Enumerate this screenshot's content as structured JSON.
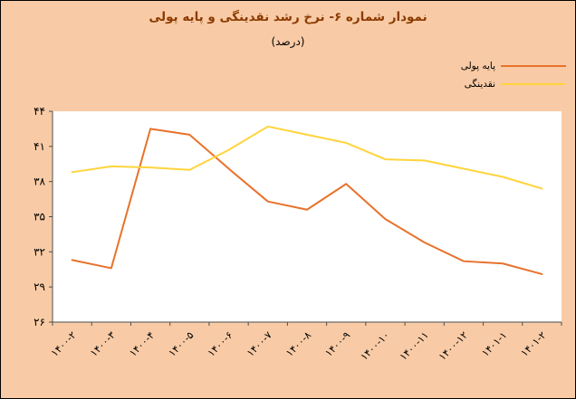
{
  "colors": {
    "background": "#F8CBA6",
    "title": "#8C3B00",
    "axis": "#4D4D4D",
    "plot_background": "#FFFFFF",
    "tick_label": "#000000"
  },
  "chart_data": {
    "type": "line",
    "title": "نمودار شماره ۶- نرخ رشد نقدینگی و پایه پولی",
    "subtitle": "(درصد)",
    "categories": [
      "۱۴۰۰-۲",
      "۱۴۰۰-۳",
      "۱۴۰۰-۴",
      "۱۴۰۰-۵",
      "۱۴۰۰-۶",
      "۱۴۰۰-۷",
      "۱۴۰۰-۸",
      "۱۴۰۰-۹",
      "۱۴۰۰-۱۰",
      "۱۴۰۰-۱۱",
      "۱۴۰۰-۱۲",
      "۱۴۰۱-۱",
      "۱۴۰۱-۲"
    ],
    "series": [
      {
        "name": "پایه پولی",
        "color": "#E8722B",
        "values": [
          31.3,
          30.6,
          42.5,
          42.0,
          39.1,
          36.3,
          35.6,
          37.8,
          34.8,
          32.8,
          31.2,
          31.0,
          30.1
        ]
      },
      {
        "name": "نقدینگی",
        "color": "#FFD43C",
        "values": [
          38.8,
          39.3,
          39.2,
          39.0,
          40.7,
          42.7,
          42.0,
          41.3,
          39.9,
          39.8,
          39.1,
          38.4,
          37.4
        ]
      }
    ],
    "ylim": [
      26,
      44
    ],
    "ytick_values": [
      26,
      29,
      32,
      35,
      38,
      41,
      44
    ],
    "ytick_labels": [
      "۲۶",
      "۲۹",
      "۳۲",
      "۳۵",
      "۳۸",
      "۴۱",
      "۴۴"
    ],
    "xlabel": "",
    "ylabel": "",
    "grid": false,
    "legend_position": "top-right"
  }
}
